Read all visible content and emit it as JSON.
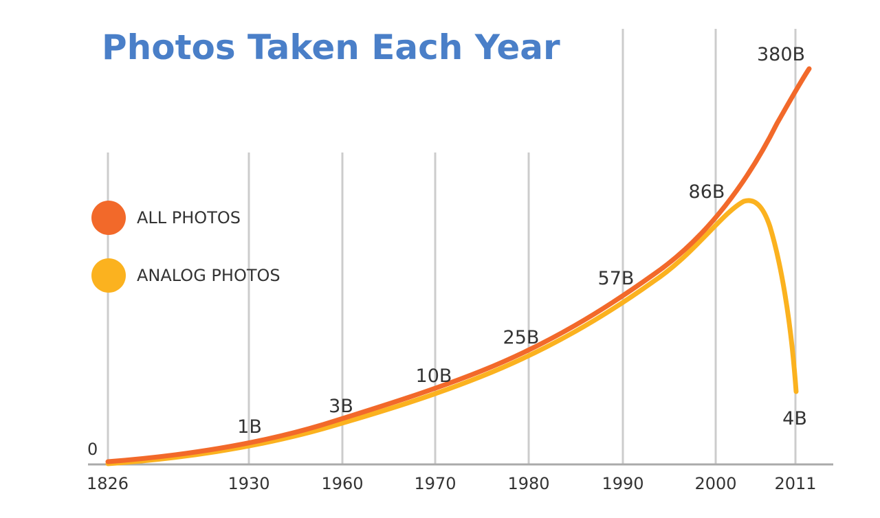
{
  "colors": {
    "title": "#4a7fc8",
    "all_photos": "#f2692a",
    "analog_photos": "#fbb21f",
    "grid": "#cccccc",
    "axis": "#aaaaaa",
    "text": "#333333"
  },
  "chart_data": {
    "type": "line",
    "title": "Photos Taken Each Year",
    "xlabel": "",
    "ylabel": "",
    "x_tick_labels": [
      "1826",
      "1930",
      "1960",
      "1970",
      "1980",
      "1990",
      "2000",
      "2011"
    ],
    "y_zero_label": "0",
    "grid": "vertical",
    "legend_position": "left",
    "series": [
      {
        "name": "ALL PHOTOS",
        "color": "#f2692a",
        "points": [
          {
            "x": "1826",
            "y": 0,
            "label": ""
          },
          {
            "x": "1930",
            "y": 1,
            "label": "1B"
          },
          {
            "x": "1960",
            "y": 3,
            "label": "3B"
          },
          {
            "x": "1970",
            "y": 10,
            "label": "10B"
          },
          {
            "x": "1980",
            "y": 25,
            "label": "25B"
          },
          {
            "x": "1990",
            "y": 57,
            "label": "57B"
          },
          {
            "x": "2000",
            "y": 86,
            "label": "86B"
          },
          {
            "x": "2011",
            "y": 380,
            "label": "380B"
          }
        ]
      },
      {
        "name": "ANALOG PHOTOS",
        "color": "#fbb21f",
        "points": [
          {
            "x": "1826",
            "y": 0,
            "label": ""
          },
          {
            "x": "1930",
            "y": 1,
            "label": ""
          },
          {
            "x": "1960",
            "y": 3,
            "label": ""
          },
          {
            "x": "1970",
            "y": 10,
            "label": ""
          },
          {
            "x": "1980",
            "y": 25,
            "label": ""
          },
          {
            "x": "1990",
            "y": 57,
            "label": ""
          },
          {
            "x": "2000",
            "y": 86,
            "label": ""
          },
          {
            "x": "2011",
            "y": 4,
            "label": "4B"
          }
        ]
      }
    ]
  }
}
